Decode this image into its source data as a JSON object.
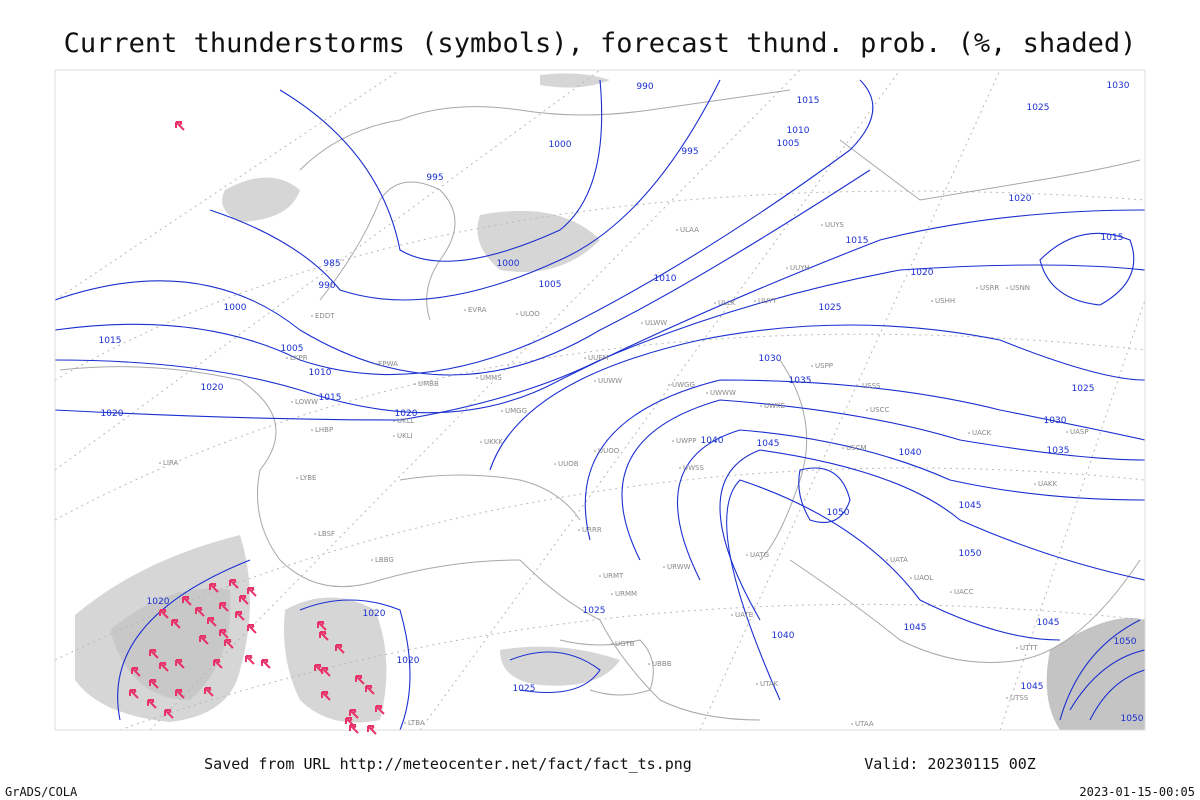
{
  "title": "Current thunderstorms (symbols), forecast thund. prob. (%, shaded)",
  "footer": {
    "source": "Saved from URL http://meteocenter.net/fact/fact_ts.png",
    "valid": "Valid: 20230115 00Z",
    "credit": "GrADS/COLA",
    "timestamp": "2023-01-15-00:05"
  },
  "isobar_labels": [
    "990",
    "1000",
    "995",
    "995",
    "1015",
    "1010",
    "1005",
    "1025",
    "1030",
    "985",
    "990",
    "1000",
    "1000",
    "1005",
    "1010",
    "1015",
    "1020",
    "1020",
    "1015",
    "1015",
    "1005",
    "1010",
    "1015",
    "1020",
    "1020",
    "1020",
    "1025",
    "1030",
    "1035",
    "1040",
    "1045",
    "1040",
    "1025",
    "1030",
    "1035",
    "1045",
    "1050",
    "1050",
    "1020",
    "1020",
    "1020",
    "1025",
    "1040",
    "1045",
    "1025",
    "1045",
    "1050",
    "1045",
    "1050"
  ],
  "stations": [
    "ULAA",
    "UUYS",
    "UUYH",
    "ULLK",
    "UUYY",
    "ULWW",
    "UUEM",
    "UUWW",
    "UWGG",
    "UMMS",
    "UMGG",
    "UKKK",
    "UKLL",
    "UKLI",
    "UUOB",
    "UUOO",
    "UWWW",
    "UWKE",
    "UWPP",
    "UWSS",
    "URRR",
    "URWW",
    "URMT",
    "URMM",
    "UGTB",
    "UBBB",
    "UTAK",
    "UATG",
    "UATE",
    "UATA",
    "UAOL",
    "UACC",
    "UASP",
    "UACK",
    "UAKK",
    "USPP",
    "USSS",
    "USCC",
    "USCM",
    "USRR",
    "USNN",
    "USHH",
    "ULOO",
    "EVRA",
    "EPWA",
    "UMBB",
    "LHBP",
    "LYBE",
    "LBSF",
    "LBBG",
    "LIRA",
    "EDDT",
    "LKPR",
    "LOWW",
    "LTBA",
    "UTTT",
    "UTSS",
    "UTAA"
  ]
}
